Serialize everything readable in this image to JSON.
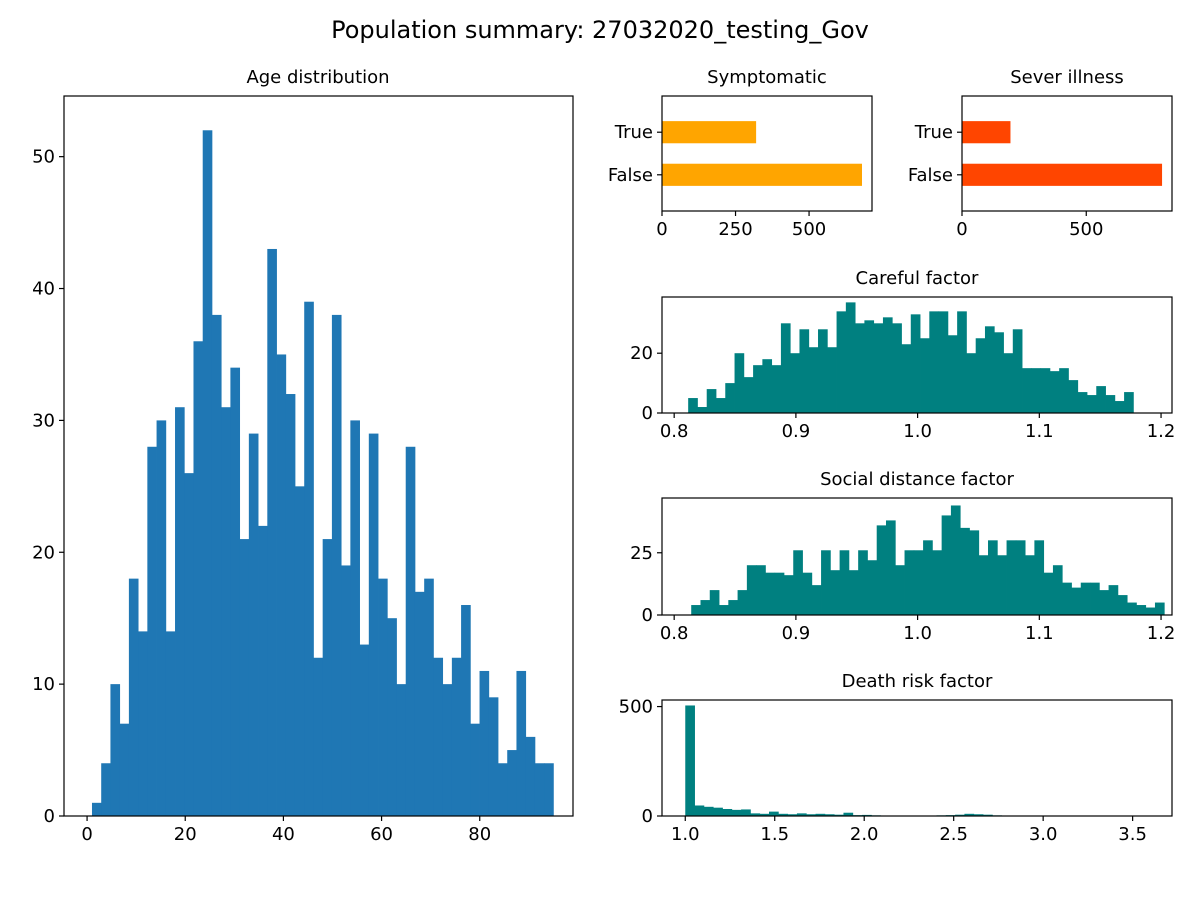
{
  "figure": {
    "suptitle": "Population summary: 27032020_testing_Gov"
  },
  "colors": {
    "blue": "#1f77b4",
    "orange": "#ffa500",
    "red": "#ff4500",
    "teal": "#008080"
  },
  "chart_data": [
    {
      "id": "age",
      "type": "bar",
      "title": "Age distribution",
      "color": "#1f77b4",
      "xlim": [
        -4.7,
        99.0
      ],
      "ylim": [
        0,
        54.6
      ],
      "xticks": [
        0,
        20,
        40,
        60,
        80
      ],
      "yticks": [
        0,
        10,
        20,
        30,
        40,
        50
      ],
      "bin_start": 1,
      "bin_width": 1.88,
      "values": [
        1,
        4,
        10,
        7,
        18,
        14,
        28,
        30,
        14,
        31,
        26,
        36,
        52,
        38,
        31,
        34,
        21,
        29,
        22,
        43,
        35,
        32,
        25,
        39,
        12,
        21,
        38,
        19,
        30,
        13,
        29,
        18,
        15,
        10,
        28,
        17,
        18,
        12,
        10,
        12,
        16,
        7,
        11,
        9,
        4,
        5,
        11,
        6,
        4,
        4
      ]
    },
    {
      "id": "symptomatic",
      "type": "bar",
      "orientation": "horizontal",
      "title": "Symptomatic",
      "color": "#ffa500",
      "categories": [
        "False",
        "True"
      ],
      "values": [
        680,
        320
      ],
      "xlim": [
        0,
        714
      ],
      "xticks": [
        0,
        250,
        500
      ]
    },
    {
      "id": "severe",
      "type": "bar",
      "orientation": "horizontal",
      "title": "Sever illness",
      "color": "#ff4500",
      "categories": [
        "False",
        "True"
      ],
      "values": [
        805,
        195
      ],
      "xlim": [
        0,
        845
      ],
      "xticks": [
        0,
        500
      ]
    },
    {
      "id": "careful",
      "type": "bar",
      "title": "Careful factor",
      "color": "#008080",
      "xlim": [
        0.79,
        1.209
      ],
      "ylim": [
        0,
        38.8
      ],
      "xticks": [
        0.8,
        0.9,
        1.0,
        1.1,
        1.2
      ],
      "xtick_labels": [
        "0.8",
        "0.9",
        "1.0",
        "1.1",
        "1.2"
      ],
      "yticks": [
        0,
        20
      ],
      "bin_start": 0.8115,
      "bin_width": 0.00762,
      "values": [
        5,
        2,
        8,
        5,
        10,
        20,
        12,
        16,
        18,
        16,
        30,
        20,
        28,
        22,
        28,
        22,
        34,
        37,
        30,
        31,
        30,
        32,
        30,
        23,
        33,
        25,
        34,
        34,
        26,
        34,
        20,
        25,
        29,
        27,
        20,
        28,
        15,
        15,
        15,
        14,
        15,
        11,
        7,
        6,
        9,
        6,
        4,
        7
      ]
    },
    {
      "id": "social",
      "type": "bar",
      "title": "Social distance factor",
      "color": "#008080",
      "xlim": [
        0.79,
        1.209
      ],
      "ylim": [
        0,
        47
      ],
      "xticks": [
        0.8,
        0.9,
        1.0,
        1.1,
        1.2
      ],
      "xtick_labels": [
        "0.8",
        "0.9",
        "1.0",
        "1.1",
        "1.2"
      ],
      "yticks": [
        0,
        25
      ],
      "bin_start": 0.814,
      "bin_width": 0.00762,
      "values": [
        4,
        6,
        10,
        4,
        6,
        10,
        20,
        20,
        17,
        17,
        16,
        26,
        17,
        12,
        26,
        18,
        26,
        18,
        26,
        22,
        36,
        38,
        20,
        26,
        26,
        30,
        26,
        40,
        44,
        35,
        34,
        24,
        30,
        24,
        30,
        30,
        24,
        30,
        17,
        20,
        13,
        11,
        13,
        13,
        10,
        12,
        8,
        5,
        4,
        3,
        5
      ]
    },
    {
      "id": "death",
      "type": "bar",
      "title": "Death risk factor",
      "color": "#008080",
      "xlim": [
        0.87,
        3.72
      ],
      "ylim": [
        0,
        530
      ],
      "xticks": [
        1.0,
        1.5,
        2.0,
        2.5,
        3.0,
        3.5
      ],
      "xtick_labels": [
        "1.0",
        "1.5",
        "2.0",
        "2.5",
        "3.0",
        "3.5"
      ],
      "yticks": [
        0,
        500
      ],
      "bin_start": 1.0,
      "bin_width": 0.052,
      "values": [
        505,
        48,
        42,
        38,
        32,
        28,
        30,
        12,
        10,
        20,
        10,
        8,
        12,
        8,
        10,
        8,
        6,
        15,
        4,
        5,
        3,
        2,
        2,
        2,
        2,
        2,
        2,
        3,
        4,
        6,
        10,
        8,
        6,
        3,
        2,
        2,
        2,
        1,
        1,
        1,
        1,
        1,
        1,
        1,
        1,
        1,
        1,
        1,
        1,
        1
      ]
    }
  ]
}
